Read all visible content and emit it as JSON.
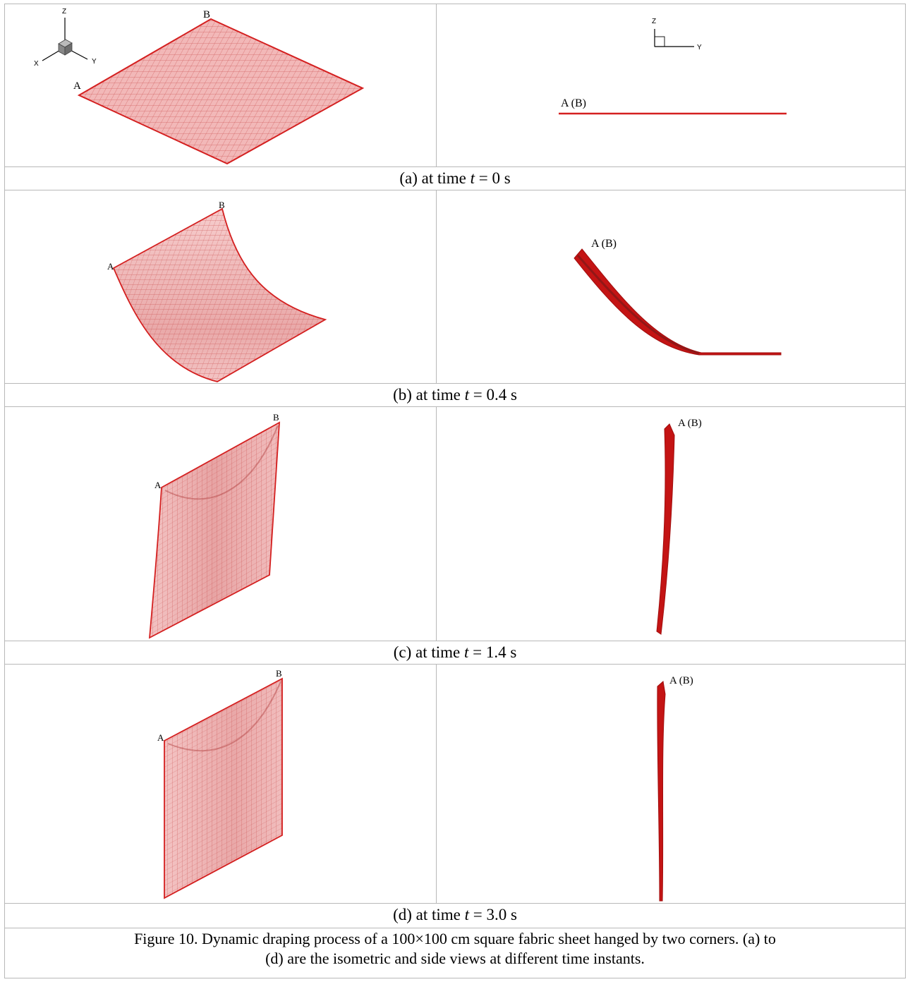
{
  "panels": [
    {
      "caption_prefix": "(a) at time ",
      "caption_var": "t",
      "caption_suffix": " = 0 s",
      "iso_labels": {
        "a": "A",
        "b": "B"
      },
      "side_label": "A (B)",
      "axes_iso": {
        "z": "Z",
        "x": "X",
        "y": "Y"
      },
      "axes_side": {
        "z": "Z",
        "y": "Y"
      }
    },
    {
      "caption_prefix": "(b) at time ",
      "caption_var": "t",
      "caption_suffix": " = 0.4 s",
      "iso_labels": {
        "a": "A",
        "b": "B"
      },
      "side_label": "A (B)"
    },
    {
      "caption_prefix": "(c) at time ",
      "caption_var": "t",
      "caption_suffix": " = 1.4 s",
      "iso_labels": {
        "a": "A",
        "b": "B"
      },
      "side_label": "A (B)"
    },
    {
      "caption_prefix": "(d) at time ",
      "caption_var": "t",
      "caption_suffix": " = 3.0 s",
      "iso_labels": {
        "a": "A",
        "b": "B"
      },
      "side_label": "A (B)"
    }
  ],
  "figure_caption_line1": "Figure 10.  Dynamic draping process of a 100×100 cm square fabric sheet hanged by two corners. (a) to",
  "figure_caption_line2": "(d) are the isometric and side views at different time instants.",
  "colors": {
    "fabric_fill": "#f2b8b8",
    "fabric_edge": "#d42020",
    "grid": "#c94a4a",
    "side_dark": "#b01010"
  }
}
